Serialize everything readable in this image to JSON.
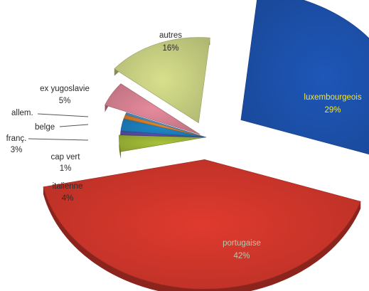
{
  "chart_data": {
    "type": "pie",
    "title": "",
    "exploded": true,
    "three_d": true,
    "slices": [
      {
        "label": "luxembourgeois",
        "value": 29,
        "display": "29%",
        "color": "#1e57b8",
        "label_color": "#f2e53c"
      },
      {
        "label": "portugaise",
        "value": 42,
        "display": "42%",
        "color": "#e03a2e",
        "label_color": "#c2c2a8"
      },
      {
        "label": "italienne",
        "value": 4,
        "display": "4%",
        "color": "#a8c23a",
        "label_color": "#2b2b2b"
      },
      {
        "label": "cap vert",
        "value": 1,
        "display": "1%",
        "color": "#5a4fb0",
        "label_color": "#2b2b2b"
      },
      {
        "label": "franç.",
        "value": 3,
        "display": "3%",
        "color": "#1e86c8",
        "label_color": "#2b2b2b"
      },
      {
        "label": "belge",
        "value": 1,
        "display": "",
        "color": "#e8862a",
        "label_color": "#2b2b2b"
      },
      {
        "label": "allem.",
        "value": 0.5,
        "display": "",
        "color": "#5b9ad6",
        "label_color": "#2b2b2b"
      },
      {
        "label": "ex yugoslavie",
        "value": 5,
        "display": "5%",
        "color": "#e58a9c",
        "label_color": "#2b2b2b"
      },
      {
        "label": "autres",
        "value": 16,
        "display": "16%",
        "color": "#d8e08c",
        "label_color": "#2b2b2b"
      }
    ]
  }
}
